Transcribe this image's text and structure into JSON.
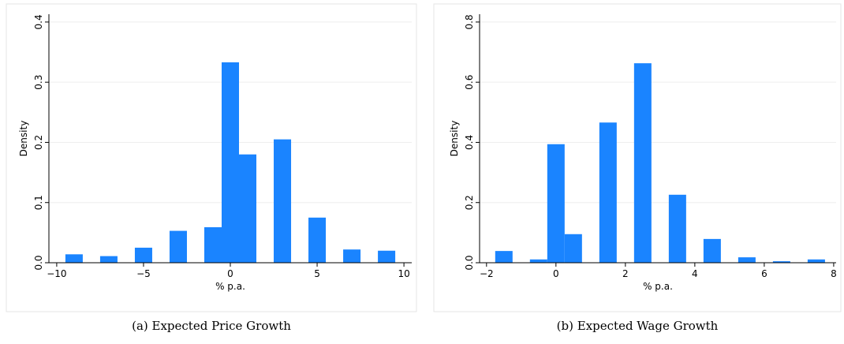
{
  "chart_data": [
    {
      "type": "bar",
      "caption": "(a) Expected Price Growth",
      "xlabel": "% p.a.",
      "ylabel": "Density",
      "color": "#1a84ff",
      "x": [
        -9,
        -7,
        -5,
        -3,
        -1,
        0,
        1,
        3,
        5,
        7,
        9
      ],
      "values": [
        0.014,
        0.011,
        0.025,
        0.053,
        0.059,
        0.333,
        0.18,
        0.205,
        0.075,
        0.022,
        0.02
      ],
      "xlim": [
        -10.45,
        10.45
      ],
      "ylim": [
        0,
        0.413
      ],
      "xticks": [
        {
          "value": -10,
          "label": "−10"
        },
        {
          "value": -5,
          "label": "−5"
        },
        0,
        5,
        10
      ],
      "yticks": [
        {
          "value": 0,
          "label": "0.0"
        },
        0.1,
        0.2,
        0.3,
        0.4
      ],
      "grid": true
    },
    {
      "type": "bar",
      "caption": "(b) Expected Wage Growth",
      "xlabel": "% p.a.",
      "ylabel": "Density",
      "color": "#1a84ff",
      "x": [
        -1.5,
        -0.5,
        0,
        0.5,
        1.5,
        2.5,
        3.5,
        4.5,
        5.5,
        6.5,
        7.5
      ],
      "values": [
        0.039,
        0.011,
        0.394,
        0.095,
        0.466,
        0.663,
        0.226,
        0.079,
        0.018,
        0.005,
        0.011
      ],
      "xlim": [
        -2.2,
        8.07
      ],
      "ylim": [
        0,
        0.826
      ],
      "xticks": [
        {
          "value": -2,
          "label": "−2"
        },
        0,
        2,
        4,
        6,
        8
      ],
      "yticks": [
        {
          "value": 0,
          "label": "0.0"
        },
        0.2,
        0.4,
        0.6,
        0.8
      ],
      "grid": true
    }
  ]
}
